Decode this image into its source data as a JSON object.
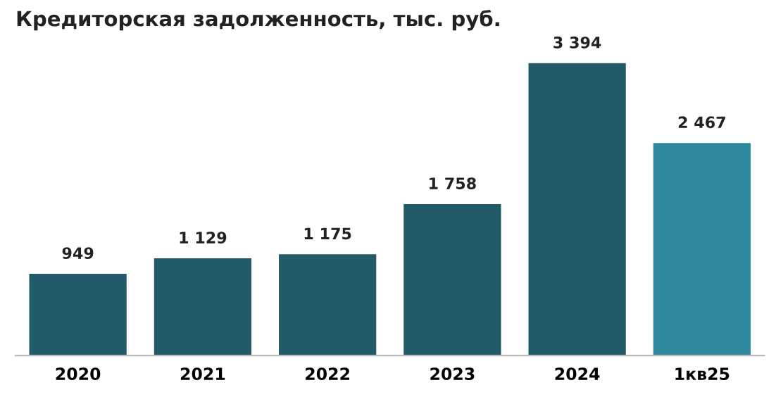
{
  "chart_data": {
    "type": "bar",
    "title": "Кредиторская задолженность, тыс. руб.",
    "categories": [
      "2020",
      "2021",
      "2022",
      "2023",
      "2024",
      "1кв25"
    ],
    "values": [
      949,
      1129,
      1175,
      1758,
      3394,
      2467
    ],
    "colors": [
      "#225a69",
      "#225a69",
      "#225a69",
      "#225a69",
      "#225a69",
      "#2e889e"
    ],
    "value_labels": [
      "949",
      "1 129",
      "1 175",
      "1 758",
      "3 394",
      "2 467"
    ],
    "tick_labels": "x",
    "grid": false,
    "legend": false
  }
}
